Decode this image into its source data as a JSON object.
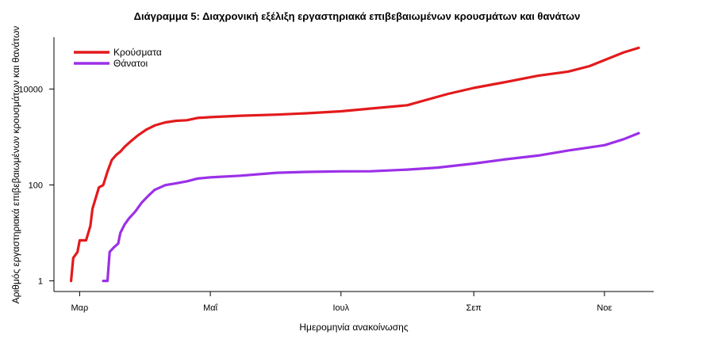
{
  "chart_data": {
    "type": "line",
    "title": "Διάγραμμα 5: Διαχρονική εξέλιξη εργαστηριακά επιβεβαιωμένων κρουσμάτων και θανάτων",
    "xlabel": "Ημερομηνία ανακοίνωσης",
    "ylabel": "Αριθμός εργαστηριακά επιβεβαιωμένων κρουσμάτων και θανάτων",
    "y_scale": "log",
    "ylim": [
      0.6,
      120000
    ],
    "xlim": [
      "2020-02-18",
      "2020-11-24"
    ],
    "y_ticks": [
      1,
      100,
      10000
    ],
    "y_tick_labels": [
      "1",
      "100",
      "10000"
    ],
    "x_ticks": [
      "2020-03-01",
      "2020-05-01",
      "2020-07-01",
      "2020-09-01",
      "2020-11-01"
    ],
    "x_tick_labels": [
      "Μαρ",
      "Μαΐ",
      "Ιουλ",
      "Σεπ",
      "Νοε"
    ],
    "grid": false,
    "legend_position": "top-left",
    "series": [
      {
        "name": "Κρούσματα",
        "color": "#e31a1c",
        "points": [
          [
            "2020-02-26",
            1
          ],
          [
            "2020-02-27",
            3
          ],
          [
            "2020-02-29",
            4
          ],
          [
            "2020-03-01",
            7
          ],
          [
            "2020-03-04",
            7
          ],
          [
            "2020-03-06",
            14
          ],
          [
            "2020-03-07",
            32
          ],
          [
            "2020-03-08",
            45
          ],
          [
            "2020-03-10",
            89
          ],
          [
            "2020-03-12",
            99
          ],
          [
            "2020-03-14",
            190
          ],
          [
            "2020-03-16",
            331
          ],
          [
            "2020-03-18",
            418
          ],
          [
            "2020-03-20",
            495
          ],
          [
            "2020-03-22",
            624
          ],
          [
            "2020-03-25",
            821
          ],
          [
            "2020-03-28",
            1061
          ],
          [
            "2020-04-01",
            1415
          ],
          [
            "2020-04-05",
            1735
          ],
          [
            "2020-04-10",
            2011
          ],
          [
            "2020-04-15",
            2170
          ],
          [
            "2020-04-20",
            2235
          ],
          [
            "2020-04-25",
            2490
          ],
          [
            "2020-05-01",
            2591
          ],
          [
            "2020-05-15",
            2770
          ],
          [
            "2020-06-01",
            2918
          ],
          [
            "2020-06-15",
            3121
          ],
          [
            "2020-07-01",
            3432
          ],
          [
            "2020-07-15",
            3910
          ],
          [
            "2020-08-01",
            4587
          ],
          [
            "2020-08-10",
            5942
          ],
          [
            "2020-08-20",
            7900
          ],
          [
            "2020-09-01",
            10524
          ],
          [
            "2020-09-15",
            13730
          ],
          [
            "2020-10-01",
            18886
          ],
          [
            "2020-10-15",
            23000
          ],
          [
            "2020-10-25",
            30000
          ],
          [
            "2020-11-01",
            40000
          ],
          [
            "2020-11-10",
            58000
          ],
          [
            "2020-11-17",
            72000
          ]
        ]
      },
      {
        "name": "Θάνατοι",
        "color": "#9b30e8",
        "points": [
          [
            "2020-03-12",
            1
          ],
          [
            "2020-03-14",
            1
          ],
          [
            "2020-03-15",
            4
          ],
          [
            "2020-03-17",
            5
          ],
          [
            "2020-03-19",
            6
          ],
          [
            "2020-03-20",
            10
          ],
          [
            "2020-03-22",
            15
          ],
          [
            "2020-03-24",
            20
          ],
          [
            "2020-03-27",
            28
          ],
          [
            "2020-03-30",
            43
          ],
          [
            "2020-04-02",
            59
          ],
          [
            "2020-04-05",
            79
          ],
          [
            "2020-04-10",
            99
          ],
          [
            "2020-04-15",
            108
          ],
          [
            "2020-04-20",
            119
          ],
          [
            "2020-04-25",
            136
          ],
          [
            "2020-05-01",
            144
          ],
          [
            "2020-05-15",
            156
          ],
          [
            "2020-06-01",
            179
          ],
          [
            "2020-06-15",
            187
          ],
          [
            "2020-07-01",
            192
          ],
          [
            "2020-07-15",
            193
          ],
          [
            "2020-08-01",
            209
          ],
          [
            "2020-08-15",
            230
          ],
          [
            "2020-09-01",
            279
          ],
          [
            "2020-09-15",
            338
          ],
          [
            "2020-10-01",
            409
          ],
          [
            "2020-10-15",
            520
          ],
          [
            "2020-11-01",
            673
          ],
          [
            "2020-11-10",
            900
          ],
          [
            "2020-11-17",
            1200
          ]
        ]
      }
    ]
  }
}
